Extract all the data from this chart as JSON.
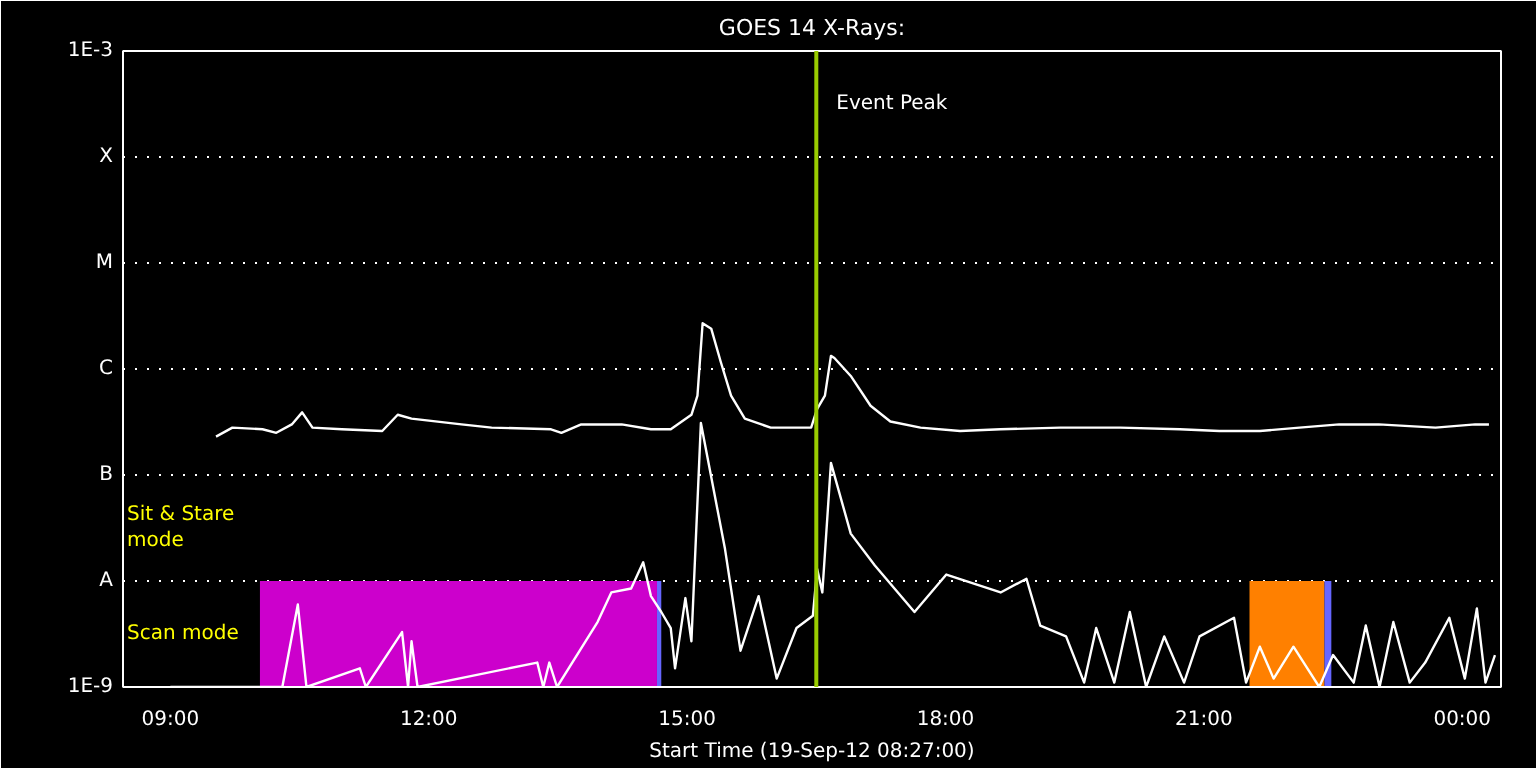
{
  "chart_data": {
    "type": "line",
    "title": "GOES 14 X-Rays:",
    "xlabel": "Start Time (19-Sep-12 08:27:00)",
    "annotations": [
      "Sit & Stare mode",
      "Scan mode"
    ],
    "log": "y",
    "grid": "y",
    "line_style": "solid",
    "xlim": [
      8.45,
      24.45
    ],
    "ylim": [
      1e-09,
      0.001
    ],
    "xticks": [
      {
        "value": 9,
        "label": "09:00"
      },
      {
        "value": 12,
        "label": "12:00"
      },
      {
        "value": 15,
        "label": "15:00"
      },
      {
        "value": 18,
        "label": "18:00"
      },
      {
        "value": 21,
        "label": "21:00"
      },
      {
        "value": 24,
        "label": "00:00"
      }
    ],
    "yticks": [
      {
        "value": 1e-09,
        "label": "1E-9"
      },
      {
        "value": 1e-08,
        "label": "A"
      },
      {
        "value": 1e-07,
        "label": "B"
      },
      {
        "value": 1e-06,
        "label": "C"
      },
      {
        "value": 1e-05,
        "label": "M"
      },
      {
        "value": 0.0001,
        "label": "X"
      },
      {
        "value": 0.001,
        "label": "1E-3"
      }
    ],
    "ref_lines": [
      {
        "axis": "x",
        "value": 16.5,
        "label": "Event Peak",
        "color": "#99cc00"
      }
    ],
    "bands": [
      {
        "axis": "x",
        "from": 10.04,
        "to": 14.65,
        "color": "#cc00cc"
      },
      {
        "axis": "x",
        "from": 14.65,
        "to": 14.7,
        "color": "#6666ff"
      },
      {
        "axis": "x",
        "from": 21.53,
        "to": 22.4,
        "color": "#ff8000"
      },
      {
        "axis": "x",
        "from": 22.4,
        "to": 22.48,
        "color": "#6666ff"
      }
    ],
    "series": [
      {
        "color": "#ffffff",
        "x": [
          9.53,
          9.72,
          10.07,
          10.23,
          10.41,
          10.53,
          10.65,
          10.99,
          11.46,
          11.64,
          11.8,
          12.38,
          12.73,
          13.42,
          13.54,
          13.77,
          14.24,
          14.58,
          14.81,
          15.05,
          15.12,
          15.18,
          15.28,
          15.39,
          15.51,
          15.67,
          15.97,
          16.44,
          16.51,
          16.6,
          16.67,
          16.71,
          16.9,
          17.13,
          17.36,
          17.71,
          18.17,
          18.64,
          19.33,
          20.03,
          20.72,
          21.18,
          21.65,
          22.11,
          22.57,
          23.03,
          23.69,
          24.15,
          24.31
        ],
        "values": [
          2.3e-07,
          2.8e-07,
          2.7e-07,
          2.5e-07,
          3e-07,
          3.9e-07,
          2.8e-07,
          2.7e-07,
          2.6e-07,
          3.7e-07,
          3.4e-07,
          3e-07,
          2.8e-07,
          2.7e-07,
          2.5e-07,
          3e-07,
          3e-07,
          2.7e-07,
          2.7e-07,
          3.7e-07,
          5.6e-07,
          2.7e-06,
          2.4e-06,
          1.17e-06,
          5.6e-07,
          3.4e-07,
          2.8e-07,
          2.8e-07,
          4.2e-07,
          5.6e-07,
          1.33e-06,
          1.27e-06,
          8.6e-07,
          4.5e-07,
          3.2e-07,
          2.8e-07,
          2.6e-07,
          2.7e-07,
          2.8e-07,
          2.8e-07,
          2.7e-07,
          2.6e-07,
          2.6e-07,
          2.8e-07,
          3e-07,
          3e-07,
          2.8e-07,
          3e-07,
          3e-07
        ]
      },
      {
        "color": "#ffffff",
        "x": [
          9.0,
          9.37,
          10.3,
          10.48,
          10.58,
          11.2,
          11.27,
          11.69,
          11.76,
          11.8,
          11.87,
          13.26,
          13.33,
          13.4,
          13.49,
          13.96,
          14.12,
          14.35,
          14.49,
          14.58,
          14.7,
          14.81,
          14.86,
          14.98,
          15.05,
          15.16,
          15.44,
          15.62,
          15.83,
          16.04,
          16.27,
          16.46,
          16.51,
          16.57,
          16.67,
          16.9,
          17.18,
          17.64,
          18.01,
          18.64,
          18.94,
          19.1,
          19.4,
          19.61,
          19.75,
          19.96,
          20.14,
          20.33,
          20.54,
          20.77,
          20.95,
          21.35,
          21.49,
          21.65,
          21.81,
          22.04,
          22.34,
          22.5,
          22.74,
          22.88,
          23.04,
          23.2,
          23.39,
          23.57,
          23.85,
          24.03,
          24.17,
          24.27,
          24.38
        ],
        "values": [
          1e-09,
          1e-09,
          1e-09,
          6e-09,
          1e-09,
          1.5e-09,
          1e-09,
          3.3e-09,
          1e-09,
          2.7e-09,
          1e-09,
          1.7e-09,
          1e-09,
          1.7e-09,
          1e-09,
          4.1e-09,
          7.8e-09,
          8.5e-09,
          1.5e-08,
          7.2e-09,
          5.1e-09,
          3.6e-09,
          1.5e-09,
          6.9e-09,
          2.7e-09,
          3.1e-07,
          2e-08,
          2.2e-09,
          7.2e-09,
          1.2e-09,
          3.6e-09,
          4.7e-09,
          1.3e-08,
          7.8e-09,
          1.3e-07,
          2.8e-08,
          1.4e-08,
          5.1e-09,
          1.15e-08,
          7.8e-09,
          1.05e-08,
          3.8e-09,
          3e-09,
          1.1e-09,
          3.6e-09,
          1.1e-09,
          5.1e-09,
          1e-09,
          3e-09,
          1.1e-09,
          3e-09,
          4.5e-09,
          1.1e-09,
          2.4e-09,
          1.2e-09,
          2.4e-09,
          1e-09,
          2e-09,
          1.1e-09,
          3.8e-09,
          1e-09,
          4.1e-09,
          1.1e-09,
          1.7e-09,
          4.5e-09,
          1.2e-09,
          5.5e-09,
          1.1e-09,
          2e-09
        ]
      }
    ]
  }
}
